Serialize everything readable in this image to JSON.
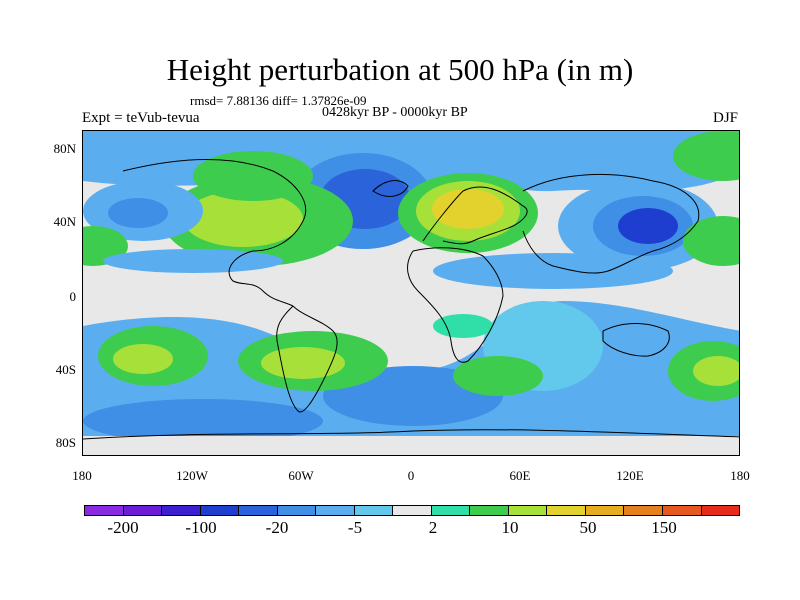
{
  "figure": {
    "title": "Height perturbation at 500 hPa (in m)",
    "stats": "rmsd= 7.88136 diff= 1.37826e-09",
    "experiment": "Expt = teVub-tevua",
    "period": "0428kyr BP - 0000kyr BP",
    "season": "DJF"
  },
  "axes": {
    "y_ticks": [
      "80N",
      "40N",
      "0",
      "40S",
      "80S"
    ],
    "x_ticks": [
      "180",
      "120W",
      "60W",
      "0",
      "60E",
      "120E",
      "180"
    ]
  },
  "colorbar": {
    "colors": [
      "#8a2be2",
      "#6a1fd6",
      "#3d1fd0",
      "#1e3ecf",
      "#2a63da",
      "#3f8fe6",
      "#5aaef0",
      "#62c8ec",
      "#e8e8e8",
      "#30dfa8",
      "#3ecc4e",
      "#a8e03a",
      "#e3d22e",
      "#e6ac22",
      "#e6801e",
      "#e65820",
      "#e62a1c"
    ],
    "labels": [
      "-200",
      "-100",
      "-20",
      "-5",
      "2",
      "10",
      "50",
      "150"
    ]
  },
  "field_colors": {
    "background": "#e8e8e8",
    "light_blue": "#5aaef0",
    "mid_blue": "#3f8fe6",
    "dark_blue": "#2a63da",
    "deep_blue": "#1e3ecf",
    "cyan": "#62c8ec",
    "teal": "#30dfa8",
    "green": "#3ecc4e",
    "lime": "#a8e03a",
    "yellow": "#e3d22e",
    "orange": "#e6ac22",
    "coast": "#000000"
  }
}
